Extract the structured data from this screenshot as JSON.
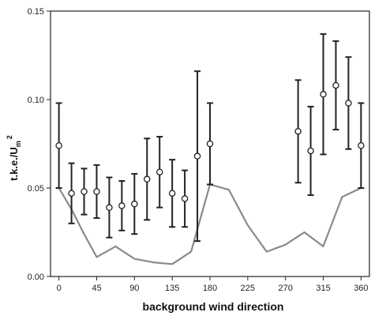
{
  "chart_data": {
    "type": "scatter",
    "xlabel": "background wind direction",
    "ylabel": {
      "main": "t.k.e./U",
      "subscript": "m",
      "superscript": "2"
    },
    "xlim": [
      -10,
      370
    ],
    "ylim": [
      0,
      0.15
    ],
    "xticks": [
      0,
      45,
      90,
      135,
      180,
      225,
      270,
      315,
      360
    ],
    "xtick_labels": [
      "0",
      "45",
      "90",
      "135",
      "180",
      "225",
      "270",
      "315",
      "360"
    ],
    "yticks": [
      0,
      0.05,
      0.1,
      0.15
    ],
    "ytick_labels": [
      "0.00",
      "0.05",
      "0.10",
      "0.15"
    ],
    "grid": false,
    "series": [
      {
        "kind": "points_with_error_bars",
        "color": "#222222",
        "marker": "open-circle",
        "x": [
          0,
          15,
          30,
          45,
          60,
          75,
          90,
          105,
          120,
          135,
          150,
          165,
          180,
          285,
          300,
          315,
          330,
          345,
          360
        ],
        "y": [
          0.074,
          0.047,
          0.048,
          0.048,
          0.039,
          0.04,
          0.041,
          0.055,
          0.059,
          0.047,
          0.044,
          0.068,
          0.075,
          0.082,
          0.071,
          0.103,
          0.108,
          0.098,
          0.074
        ],
        "yerr": [
          0.024,
          0.017,
          0.013,
          0.015,
          0.017,
          0.014,
          0.017,
          0.023,
          0.02,
          0.019,
          0.016,
          0.048,
          0.023,
          0.029,
          0.025,
          0.034,
          0.025,
          0.026,
          0.024
        ]
      },
      {
        "kind": "line",
        "color": "#8a8a8a",
        "x": [
          0,
          15,
          30,
          45,
          67.5,
          90,
          112.5,
          135,
          157.5,
          180,
          202.5,
          225,
          247.5,
          270,
          292.5,
          315,
          337.5,
          360
        ],
        "y": [
          0.05,
          0.038,
          0.024,
          0.011,
          0.017,
          0.01,
          0.008,
          0.007,
          0.014,
          0.052,
          0.049,
          0.029,
          0.014,
          0.018,
          0.025,
          0.017,
          0.045,
          0.05
        ]
      }
    ]
  }
}
